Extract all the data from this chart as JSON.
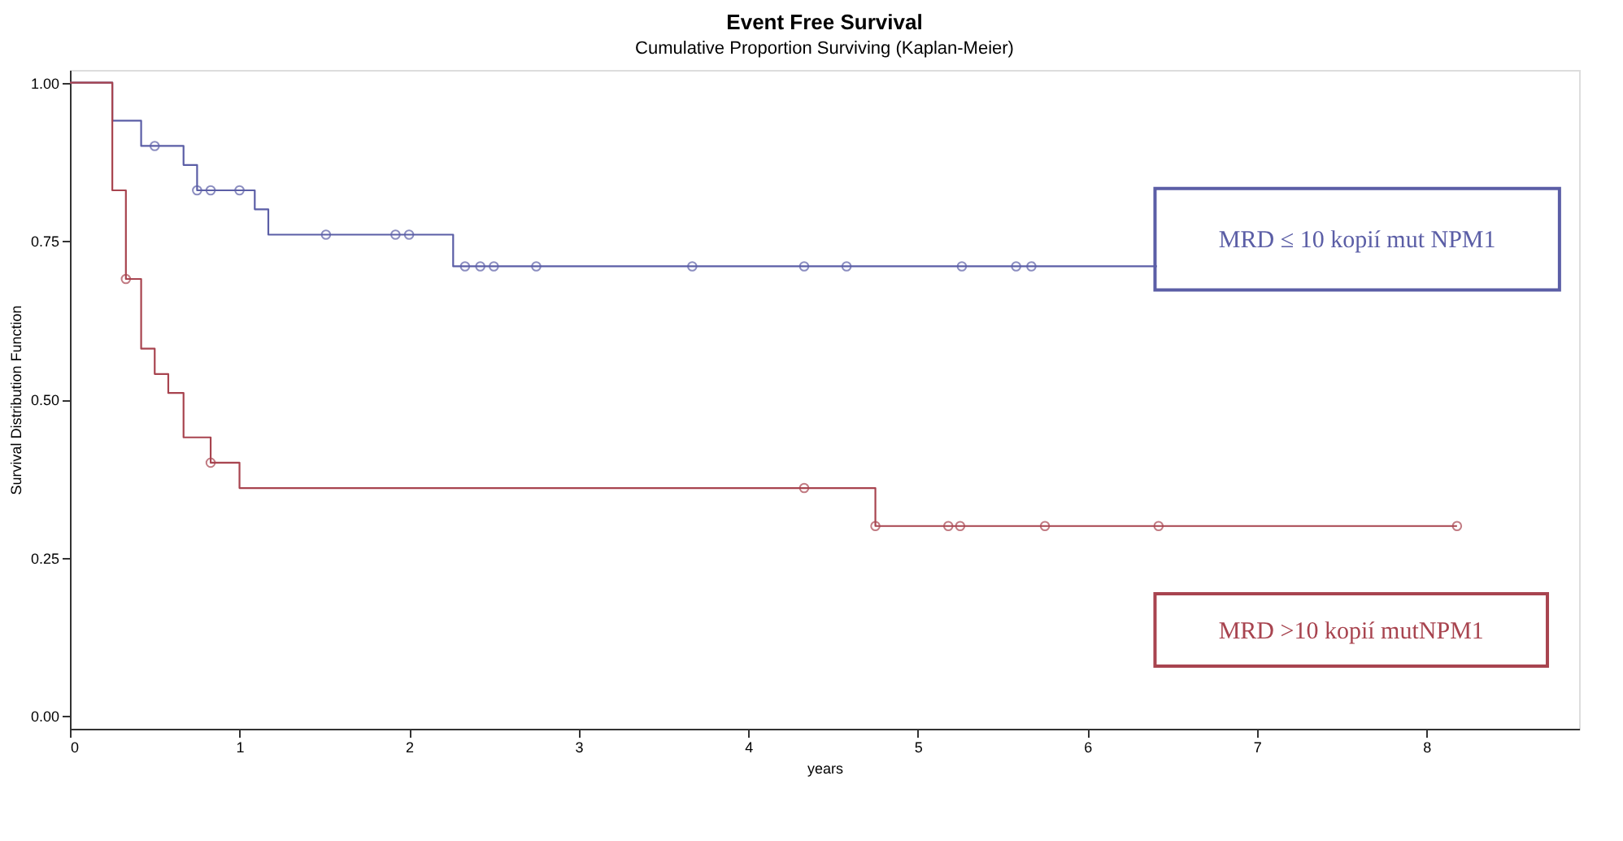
{
  "chart_data": {
    "type": "step",
    "title": "Event Free Survival",
    "subtitle": "Cumulative Proportion Surviving (Kaplan-Meier)",
    "xlabel": "years",
    "ylabel": "Survival Distribution Function",
    "series": [
      {
        "name": "MRD ≤ 10 kopií mut NPM1",
        "color": "#5b5ea6",
        "x": [
          0,
          0.25,
          0.42,
          0.67,
          0.75,
          1.09,
          1.17,
          2.26,
          6.41
        ],
        "values": [
          1.0,
          0.94,
          0.9,
          0.87,
          0.83,
          0.8,
          0.76,
          0.71,
          0.71
        ]
      },
      {
        "type": "scatter",
        "marker": "circle",
        "color": "#5b5ea6",
        "x": [
          0.5,
          0.75,
          0.83,
          1.0,
          1.51,
          1.92,
          2.0,
          2.33,
          2.42,
          2.5,
          2.75,
          3.67,
          4.33,
          4.58,
          5.26,
          5.58,
          5.67
        ],
        "values": [
          0.9,
          0.83,
          0.83,
          0.83,
          0.76,
          0.76,
          0.76,
          0.71,
          0.71,
          0.71,
          0.71,
          0.71,
          0.71,
          0.71,
          0.71,
          0.71,
          0.71
        ]
      },
      {
        "name": "MRD >10 kopií mutNPM1",
        "color": "#a8444f",
        "x": [
          0,
          0.25,
          0.33,
          0.42,
          0.5,
          0.58,
          0.67,
          0.83,
          1.0,
          4.75,
          8.18
        ],
        "values": [
          1.0,
          0.83,
          0.69,
          0.58,
          0.54,
          0.51,
          0.44,
          0.4,
          0.36,
          0.3,
          0.3
        ]
      },
      {
        "type": "scatter",
        "marker": "circle",
        "color": "#a8444f",
        "x": [
          0.33,
          0.83,
          4.33,
          4.75,
          5.18,
          5.25,
          5.75,
          6.42,
          8.18
        ],
        "values": [
          0.69,
          0.4,
          0.36,
          0.3,
          0.3,
          0.3,
          0.3,
          0.3,
          0.3
        ]
      }
    ],
    "xlim": [
      0,
      8.9
    ],
    "xticks": [
      0,
      1,
      2,
      3,
      4,
      5,
      6,
      7,
      8
    ],
    "ylim": [
      -0.02,
      1.02
    ],
    "yticks": [
      {
        "value": 0,
        "label": "0.00"
      },
      {
        "value": 0.25,
        "label": "0.25"
      },
      {
        "value": 0.5,
        "label": "0.50"
      },
      {
        "value": 0.75,
        "label": "0.75"
      },
      {
        "value": 1,
        "label": "1.00"
      }
    ],
    "grid": false,
    "legend": false
  }
}
